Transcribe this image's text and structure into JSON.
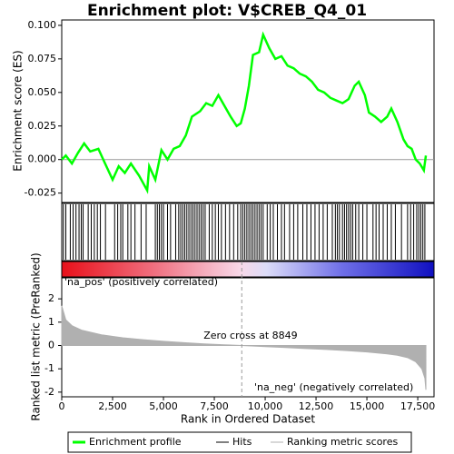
{
  "chart_data": [
    {
      "type": "line",
      "title": "Enrichment plot: V$CREB_Q4_01",
      "ylabel": "Enrichment score (ES)",
      "xlim": [
        0,
        18300
      ],
      "ylim": [
        -0.032,
        0.104
      ],
      "yticks": [
        -0.025,
        {
          "value": 0,
          "label": "0.000"
        },
        0.025,
        {
          "value": 0.05,
          "label": "0.050"
        },
        0.075,
        {
          "value": 0.1,
          "label": "0.100"
        }
      ],
      "x": [
        0,
        200,
        500,
        800,
        1100,
        1400,
        1800,
        2100,
        2500,
        2800,
        3100,
        3400,
        3800,
        4200,
        4300,
        4600,
        4900,
        5200,
        5500,
        5800,
        6100,
        6400,
        6800,
        7100,
        7400,
        7700,
        8000,
        8300,
        8600,
        8800,
        9000,
        9200,
        9400,
        9700,
        9900,
        10200,
        10500,
        10800,
        11100,
        11400,
        11700,
        12000,
        12300,
        12600,
        12900,
        13200,
        13500,
        13800,
        14100,
        14400,
        14600,
        14900,
        15100,
        15400,
        15700,
        16000,
        16200,
        16500,
        16800,
        17000,
        17200,
        17400,
        17600,
        17800,
        17900
      ],
      "series": [
        {
          "name": "Enrichment profile",
          "color": "#00ff00",
          "values": [
            0,
            0.003,
            -0.003,
            0.005,
            0.012,
            0.006,
            0.008,
            -0.002,
            -0.015,
            -0.005,
            -0.01,
            -0.003,
            -0.012,
            -0.023,
            -0.005,
            -0.015,
            0.007,
            0.0,
            0.008,
            0.01,
            0.018,
            0.032,
            0.036,
            0.042,
            0.04,
            0.048,
            0.04,
            0.032,
            0.025,
            0.027,
            0.038,
            0.055,
            0.078,
            0.08,
            0.093,
            0.083,
            0.075,
            0.077,
            0.07,
            0.068,
            0.064,
            0.062,
            0.058,
            0.052,
            0.05,
            0.046,
            0.044,
            0.042,
            0.045,
            0.055,
            0.058,
            0.048,
            0.035,
            0.032,
            0.028,
            0.032,
            0.038,
            0.028,
            0.015,
            0.01,
            0.008,
            0.0,
            -0.003,
            -0.008,
            0.003
          ]
        }
      ]
    },
    {
      "type": "hits",
      "xlim": [
        0,
        18300
      ],
      "series": [
        {
          "name": "Hits",
          "color": "#000000",
          "x": [
            80,
            200,
            420,
            560,
            700,
            850,
            960,
            1050,
            1300,
            1450,
            1600,
            1750,
            1900,
            2150,
            2600,
            2750,
            2900,
            3000,
            3250,
            3400,
            3600,
            3900,
            4150,
            4600,
            4700,
            4800,
            4900,
            5000,
            5200,
            5350,
            5600,
            5750,
            5850,
            5950,
            6050,
            6150,
            6250,
            6350,
            6450,
            6550,
            6650,
            6750,
            6850,
            6950,
            7050,
            7250,
            7400,
            7550,
            7700,
            7850,
            8050,
            8250,
            8450,
            8650,
            8800,
            8900,
            9000,
            9100,
            9200,
            9300,
            9400,
            9500,
            9600,
            9700,
            9800,
            9900,
            10100,
            10250,
            10400,
            10600,
            10800,
            10950,
            11200,
            11400,
            11600,
            11850,
            12050,
            12250,
            12450,
            12650,
            12850,
            13050,
            13300,
            13450,
            13550,
            13650,
            13800,
            13900,
            14000,
            14100,
            14200,
            14300,
            14450,
            14600,
            14800,
            15000,
            15300,
            15450,
            15600,
            15800,
            16000,
            16200,
            16400,
            16700,
            17000,
            17150,
            17300,
            17450,
            17550,
            17650,
            17750,
            17850
          ]
        }
      ]
    },
    {
      "type": "area",
      "ylabel": "Ranked list metric (PreRanked)",
      "xlabel": "Rank in Ordered Dataset",
      "xlim": [
        0,
        18300
      ],
      "ylim": [
        -2.2,
        2.9
      ],
      "xticks": [
        0,
        {
          "value": 2500,
          "label": "2,500"
        },
        {
          "value": 5000,
          "label": "5,000"
        },
        {
          "value": 7500,
          "label": "7,500"
        },
        {
          "value": 10000,
          "label": "10,000"
        },
        {
          "value": 12500,
          "label": "12,500"
        },
        {
          "value": 15000,
          "label": "15,000"
        },
        {
          "value": 17500,
          "label": "17,500"
        }
      ],
      "yticks": [
        -2,
        -1,
        0,
        1,
        2
      ],
      "x": [
        0,
        200,
        500,
        1000,
        2000,
        3000,
        4000,
        5000,
        6000,
        7000,
        8000,
        8849,
        10000,
        11000,
        12000,
        13000,
        14000,
        15000,
        16000,
        16500,
        17000,
        17400,
        17700,
        17850,
        17900
      ],
      "series": [
        {
          "name": "Ranking metric scores",
          "color": "#b0b0b0",
          "values": [
            1.7,
            1.1,
            0.85,
            0.65,
            0.45,
            0.33,
            0.25,
            0.18,
            0.12,
            0.07,
            0.03,
            0,
            -0.05,
            -0.09,
            -0.13,
            -0.17,
            -0.22,
            -0.28,
            -0.36,
            -0.42,
            -0.52,
            -0.7,
            -1.0,
            -1.4,
            -1.9
          ]
        }
      ],
      "pos_label": "'na_pos' (positively correlated)",
      "neg_label": "'na_neg' (negatively correlated)",
      "zero_cross": {
        "value": 8849,
        "label": "Zero cross at 8849"
      }
    }
  ]
}
